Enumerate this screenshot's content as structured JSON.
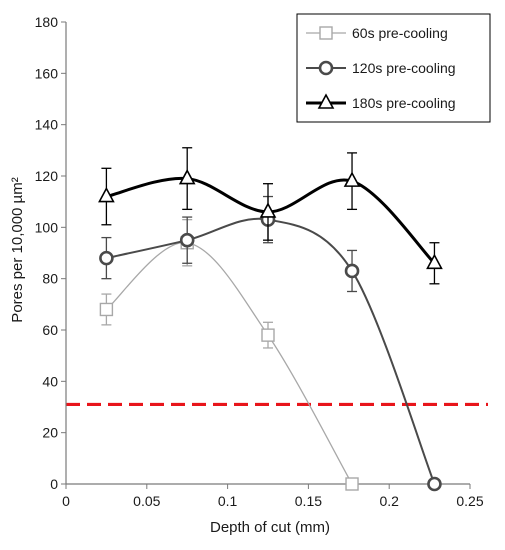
{
  "chart_data": {
    "type": "line",
    "title": "",
    "xlabel": "Depth of cut (mm)",
    "ylabel": "Pores per 10,000 µm²",
    "xlim": [
      0,
      0.25
    ],
    "ylim": [
      0,
      180
    ],
    "x_ticks": [
      "0",
      "0.05",
      "0.1",
      "0.15",
      "0.2",
      "0.25"
    ],
    "y_ticks": [
      "0",
      "20",
      "40",
      "60",
      "80",
      "100",
      "120",
      "140",
      "160",
      "180"
    ],
    "grid": false,
    "legend_position": "top-right",
    "reference_line": {
      "y": 31,
      "style": "dashed",
      "color": "#e8151b"
    },
    "series": [
      {
        "name": "60s pre-cooling",
        "marker": "square",
        "color": "#a8a8a8",
        "stroke_width": 1.3,
        "x": [
          0.025,
          0.075,
          0.125,
          0.177
        ],
        "y": [
          68,
          94,
          58,
          0
        ],
        "err": [
          6,
          9,
          5,
          0
        ]
      },
      {
        "name": "120s pre-cooling",
        "marker": "circle",
        "color": "#4a4a4a",
        "stroke_width": 2,
        "x": [
          0.025,
          0.075,
          0.125,
          0.177,
          0.228
        ],
        "y": [
          88,
          95,
          103,
          83,
          0
        ],
        "err": [
          8,
          9,
          9,
          8,
          0
        ]
      },
      {
        "name": "180s pre-cooling",
        "marker": "triangle",
        "color": "#000000",
        "stroke_width": 3,
        "x": [
          0.025,
          0.075,
          0.125,
          0.177,
          0.228
        ],
        "y": [
          112,
          119,
          106,
          118,
          86
        ],
        "err": [
          11,
          12,
          11,
          11,
          8
        ]
      }
    ]
  }
}
